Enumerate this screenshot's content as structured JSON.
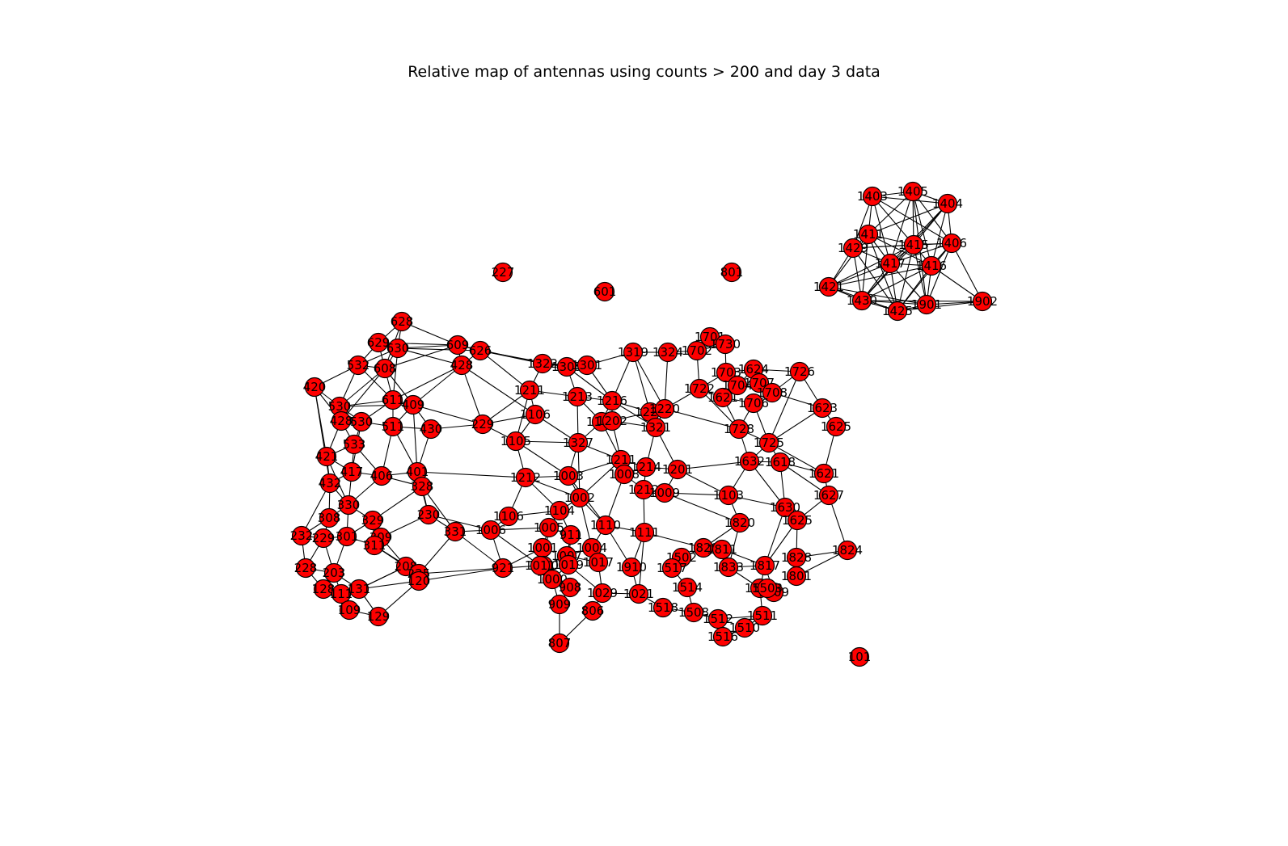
{
  "title": "Relative map of antennas using counts > 200 and day 3 data",
  "colors": {
    "node_fill": "#ff0000",
    "node_stroke": "#000000",
    "edge": "#000000"
  },
  "nodes": [
    {
      "id": "1403",
      "label": "1403"
    },
    {
      "id": "1405",
      "label": "1405"
    },
    {
      "id": "1404",
      "label": "1404"
    },
    {
      "id": "1411",
      "label": "1411"
    },
    {
      "id": "1429",
      "label": "1429"
    },
    {
      "id": "1415",
      "label": "1415"
    },
    {
      "id": "1406",
      "label": "1406"
    },
    {
      "id": "1417",
      "label": "1417"
    },
    {
      "id": "1416",
      "label": "1416"
    },
    {
      "id": "1421",
      "label": "1421"
    },
    {
      "id": "1430",
      "label": "1430"
    },
    {
      "id": "1425",
      "label": "1425"
    },
    {
      "id": "1901",
      "label": "1901"
    },
    {
      "id": "1902",
      "label": "1902"
    },
    {
      "id": "227",
      "label": "227"
    },
    {
      "id": "601",
      "label": "601"
    },
    {
      "id": "801",
      "label": "801"
    },
    {
      "id": "101",
      "label": "101"
    },
    {
      "id": "628",
      "label": "628"
    },
    {
      "id": "629",
      "label": "629"
    },
    {
      "id": "630",
      "label": "630"
    },
    {
      "id": "609",
      "label": "609"
    },
    {
      "id": "626",
      "label": "626"
    },
    {
      "id": "532",
      "label": "532"
    },
    {
      "id": "608",
      "label": "608"
    },
    {
      "id": "428",
      "label": "428"
    },
    {
      "id": "420",
      "label": "420"
    },
    {
      "id": "530",
      "label": "530"
    },
    {
      "id": "611",
      "label": "611"
    },
    {
      "id": "409",
      "label": "409"
    },
    {
      "id": "428b",
      "label": "428"
    },
    {
      "id": "530b",
      "label": "530"
    },
    {
      "id": "511",
      "label": "511"
    },
    {
      "id": "430",
      "label": "430"
    },
    {
      "id": "229b",
      "label": "229"
    },
    {
      "id": "533",
      "label": "533"
    },
    {
      "id": "421",
      "label": "421"
    },
    {
      "id": "417",
      "label": "417"
    },
    {
      "id": "406",
      "label": "406"
    },
    {
      "id": "401",
      "label": "401"
    },
    {
      "id": "432",
      "label": "432"
    },
    {
      "id": "328",
      "label": "328"
    },
    {
      "id": "330",
      "label": "330"
    },
    {
      "id": "230",
      "label": "230"
    },
    {
      "id": "329",
      "label": "329"
    },
    {
      "id": "308",
      "label": "308"
    },
    {
      "id": "232",
      "label": "232"
    },
    {
      "id": "229",
      "label": "229"
    },
    {
      "id": "301",
      "label": "301"
    },
    {
      "id": "309",
      "label": "309"
    },
    {
      "id": "331",
      "label": "331"
    },
    {
      "id": "311",
      "label": "311"
    },
    {
      "id": "228",
      "label": "228"
    },
    {
      "id": "203",
      "label": "203"
    },
    {
      "id": "208",
      "label": "208"
    },
    {
      "id": "225",
      "label": "225"
    },
    {
      "id": "128",
      "label": "128"
    },
    {
      "id": "111",
      "label": "111"
    },
    {
      "id": "131",
      "label": "131"
    },
    {
      "id": "120",
      "label": "120"
    },
    {
      "id": "109",
      "label": "109"
    },
    {
      "id": "129",
      "label": "129"
    },
    {
      "id": "1322",
      "label": "1322"
    },
    {
      "id": "1305",
      "label": "1305"
    },
    {
      "id": "1301",
      "label": "1301"
    },
    {
      "id": "1319",
      "label": "1319"
    },
    {
      "id": "1324",
      "label": "1324"
    },
    {
      "id": "1701",
      "label": "1701"
    },
    {
      "id": "1730",
      "label": "1730"
    },
    {
      "id": "1702",
      "label": "1702"
    },
    {
      "id": "1211",
      "label": "1211"
    },
    {
      "id": "1213",
      "label": "1213"
    },
    {
      "id": "1216",
      "label": "1216"
    },
    {
      "id": "1106",
      "label": "1106"
    },
    {
      "id": "1108",
      "label": "1108"
    },
    {
      "id": "1202",
      "label": "1202"
    },
    {
      "id": "1222",
      "label": "1222"
    },
    {
      "id": "1220",
      "label": "1220"
    },
    {
      "id": "1321",
      "label": "1321"
    },
    {
      "id": "1105",
      "label": "1105"
    },
    {
      "id": "1327",
      "label": "1327"
    },
    {
      "id": "1722",
      "label": "1722"
    },
    {
      "id": "1703",
      "label": "1703"
    },
    {
      "id": "1621",
      "label": "1621"
    },
    {
      "id": "1704",
      "label": "1704"
    },
    {
      "id": "1624",
      "label": "1624"
    },
    {
      "id": "1707",
      "label": "1707"
    },
    {
      "id": "1708",
      "label": "1708"
    },
    {
      "id": "1706",
      "label": "1706"
    },
    {
      "id": "1726",
      "label": "1726"
    },
    {
      "id": "1623",
      "label": "1623"
    },
    {
      "id": "1625",
      "label": "1625"
    },
    {
      "id": "1728",
      "label": "1728"
    },
    {
      "id": "1725",
      "label": "1725"
    },
    {
      "id": "1632",
      "label": "1632"
    },
    {
      "id": "1618",
      "label": "1618"
    },
    {
      "id": "1621b",
      "label": "1621"
    },
    {
      "id": "1627",
      "label": "1627"
    },
    {
      "id": "1630",
      "label": "1630"
    },
    {
      "id": "1625b",
      "label": "1625"
    },
    {
      "id": "1824",
      "label": "1824"
    },
    {
      "id": "1828",
      "label": "1828"
    },
    {
      "id": "1801",
      "label": "1801"
    },
    {
      "id": "1212",
      "label": "1212"
    },
    {
      "id": "1003",
      "label": "1003"
    },
    {
      "id": "1211b",
      "label": "1211"
    },
    {
      "id": "1214",
      "label": "1214"
    },
    {
      "id": "1008",
      "label": "1008"
    },
    {
      "id": "1201",
      "label": "1201"
    },
    {
      "id": "1212b",
      "label": "1212"
    },
    {
      "id": "1009",
      "label": "1009"
    },
    {
      "id": "1103",
      "label": "1103"
    },
    {
      "id": "1002",
      "label": "1002"
    },
    {
      "id": "1104",
      "label": "1104"
    },
    {
      "id": "1820",
      "label": "1820"
    },
    {
      "id": "1106b",
      "label": "1106"
    },
    {
      "id": "1110",
      "label": "1110"
    },
    {
      "id": "1111",
      "label": "1111"
    },
    {
      "id": "1006",
      "label": "1006"
    },
    {
      "id": "1005",
      "label": "1005"
    },
    {
      "id": "911",
      "label": "911"
    },
    {
      "id": "1001",
      "label": "1001"
    },
    {
      "id": "1829",
      "label": "1829"
    },
    {
      "id": "1811",
      "label": "1811"
    },
    {
      "id": "1502",
      "label": "1502"
    },
    {
      "id": "1004",
      "label": "1004"
    },
    {
      "id": "1010",
      "label": "1010"
    },
    {
      "id": "1007",
      "label": "1007"
    },
    {
      "id": "1017",
      "label": "1017"
    },
    {
      "id": "1019",
      "label": "1019"
    },
    {
      "id": "1910",
      "label": "1910"
    },
    {
      "id": "1517",
      "label": "1517"
    },
    {
      "id": "1833",
      "label": "1833"
    },
    {
      "id": "1817",
      "label": "1817"
    },
    {
      "id": "921",
      "label": "921"
    },
    {
      "id": "1011",
      "label": "1011"
    },
    {
      "id": "1501",
      "label": "1501"
    },
    {
      "id": "1509",
      "label": "1509"
    },
    {
      "id": "1503",
      "label": "1503"
    },
    {
      "id": "1000",
      "label": "1000"
    },
    {
      "id": "908",
      "label": "908"
    },
    {
      "id": "1029",
      "label": "1029"
    },
    {
      "id": "1021",
      "label": "1021"
    },
    {
      "id": "1514",
      "label": "1514"
    },
    {
      "id": "1518",
      "label": "1518"
    },
    {
      "id": "1508",
      "label": "1508"
    },
    {
      "id": "1512",
      "label": "1512"
    },
    {
      "id": "1511",
      "label": "1511"
    },
    {
      "id": "909",
      "label": "909"
    },
    {
      "id": "806",
      "label": "806"
    },
    {
      "id": "1510",
      "label": "1510"
    },
    {
      "id": "1516",
      "label": "1516"
    },
    {
      "id": "807",
      "label": "807"
    }
  ]
}
